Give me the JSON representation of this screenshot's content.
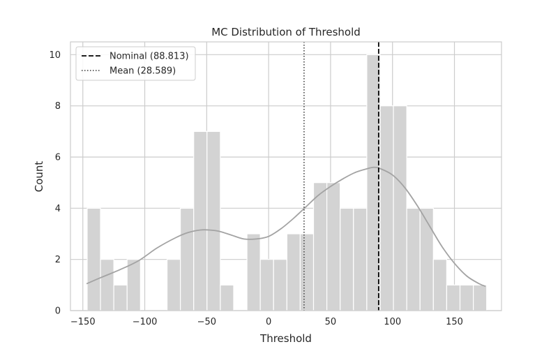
{
  "chart_data": {
    "type": "bar",
    "title": "MC Distribution of Threshold",
    "xlabel": "Threshold",
    "ylabel": "Count",
    "xlim": [
      -160,
      188
    ],
    "ylim": [
      0,
      10.5
    ],
    "xticks": [
      -150,
      -100,
      -50,
      0,
      50,
      100,
      150
    ],
    "yticks": [
      0,
      2,
      4,
      6,
      8,
      10
    ],
    "xtick_labels": [
      "−150",
      "−100",
      "−50",
      "0",
      "50",
      "100",
      "150"
    ],
    "ytick_labels": [
      "0",
      "2",
      "4",
      "6",
      "8",
      "10"
    ],
    "grid": true,
    "legend_position": "top-left",
    "histogram": {
      "bin_start": -146.5,
      "bin_width": 10.75,
      "counts": [
        4,
        2,
        1,
        2,
        0,
        0,
        2,
        4,
        7,
        7,
        1,
        0,
        3,
        2,
        2,
        3,
        3,
        5,
        5,
        4,
        4,
        10,
        8,
        8,
        4,
        4,
        2,
        1,
        1,
        1
      ],
      "color": "#d3d3d3"
    },
    "kde": {
      "x": [
        -147,
        -135,
        -120,
        -105,
        -90,
        -75,
        -65,
        -55,
        -48,
        -40,
        -30,
        -20,
        -10,
        0,
        10,
        20,
        30,
        40,
        50,
        60,
        70,
        80,
        85,
        90,
        100,
        110,
        120,
        130,
        140,
        150,
        160,
        170,
        175
      ],
      "y": [
        1.05,
        1.3,
        1.6,
        1.95,
        2.45,
        2.85,
        3.05,
        3.15,
        3.15,
        3.1,
        2.95,
        2.8,
        2.8,
        2.9,
        3.2,
        3.6,
        4.05,
        4.5,
        4.85,
        5.15,
        5.4,
        5.55,
        5.6,
        5.55,
        5.3,
        4.8,
        4.1,
        3.3,
        2.5,
        1.85,
        1.35,
        1.05,
        0.95
      ],
      "color": "#a3a3a3"
    },
    "vlines": [
      {
        "name": "Nominal (88.813)",
        "value": 88.813,
        "style": "dashed",
        "color": "#000000"
      },
      {
        "name": "Mean (28.589)",
        "value": 28.589,
        "style": "dotted",
        "color": "#555555"
      }
    ]
  }
}
